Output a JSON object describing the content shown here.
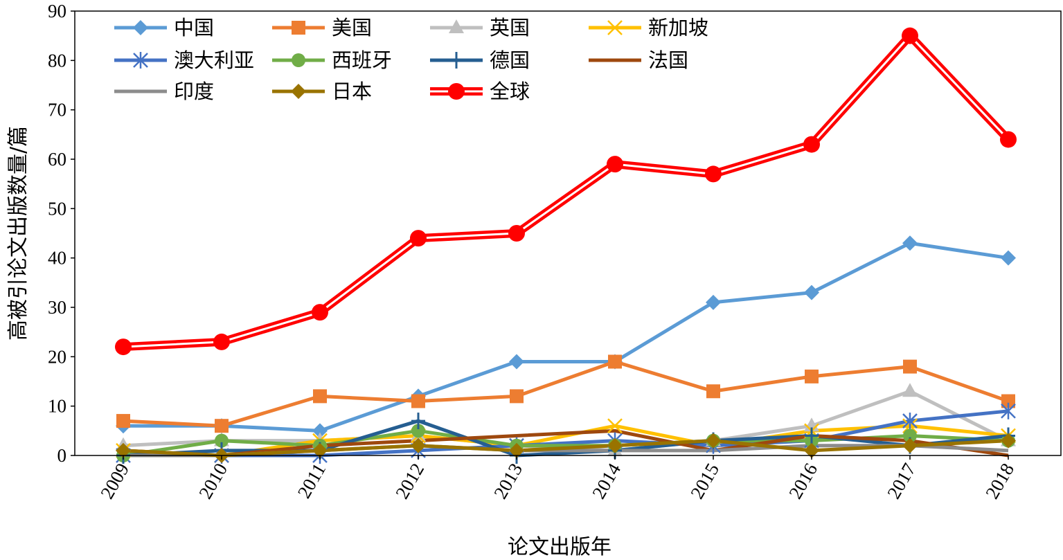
{
  "chart_data": {
    "type": "line",
    "title": "",
    "xlabel": "论文出版年",
    "ylabel": "高被引论文出版数量/篇",
    "ylim": [
      0,
      90
    ],
    "yticks": [
      "0",
      "10",
      "20",
      "30",
      "40",
      "50",
      "60",
      "70",
      "80",
      "90"
    ],
    "grid": false,
    "legend_position": "top-left",
    "categories": [
      "2009",
      "2010",
      "2011",
      "2012",
      "2013",
      "2014",
      "2015",
      "2016",
      "2017",
      "2018"
    ],
    "series": [
      {
        "name": "中国",
        "color": "#5B9BD5",
        "marker": "diamond",
        "values": [
          6,
          6,
          5,
          12,
          19,
          19,
          31,
          33,
          43,
          40
        ]
      },
      {
        "name": "美国",
        "color": "#ED7D31",
        "marker": "square",
        "values": [
          7,
          6,
          12,
          11,
          12,
          19,
          13,
          16,
          18,
          11
        ]
      },
      {
        "name": "英国",
        "color": "#BFBFBF",
        "marker": "triangle",
        "values": [
          2,
          3,
          3,
          4,
          2,
          1,
          3,
          6,
          13,
          3
        ]
      },
      {
        "name": "新加坡",
        "color": "#FFC000",
        "marker": "x",
        "values": [
          1,
          0,
          3,
          4,
          2,
          6,
          2,
          5,
          6,
          4
        ]
      },
      {
        "name": "澳大利亚",
        "color": "#4472C4",
        "marker": "asterisk",
        "values": [
          0,
          0,
          0,
          1,
          2,
          3,
          2,
          3,
          7,
          9
        ]
      },
      {
        "name": "西班牙",
        "color": "#70AD47",
        "marker": "circle",
        "values": [
          0,
          3,
          2,
          5,
          2,
          2,
          3,
          3,
          4,
          3
        ]
      },
      {
        "name": "德国",
        "color": "#255E91",
        "marker": "plus",
        "values": [
          0,
          1,
          1,
          7,
          0,
          1,
          3,
          4,
          2,
          4
        ]
      },
      {
        "name": "法国",
        "color": "#9E480E",
        "marker": "none",
        "values": [
          1,
          0,
          2,
          3,
          4,
          5,
          1,
          4,
          3,
          0
        ]
      },
      {
        "name": "印度",
        "color": "#8C8C8C",
        "marker": "none",
        "values": [
          0,
          0,
          1,
          2,
          1,
          1,
          1,
          2,
          2,
          1
        ]
      },
      {
        "name": "日本",
        "color": "#997300",
        "marker": "diamond",
        "values": [
          1,
          0,
          1,
          2,
          1,
          2,
          3,
          1,
          2,
          3
        ]
      },
      {
        "name": "全球",
        "color": "#FF0000",
        "marker": "circle-large",
        "double_line": true,
        "values": [
          22,
          23,
          29,
          44,
          45,
          59,
          57,
          63,
          85,
          64
        ]
      }
    ]
  }
}
